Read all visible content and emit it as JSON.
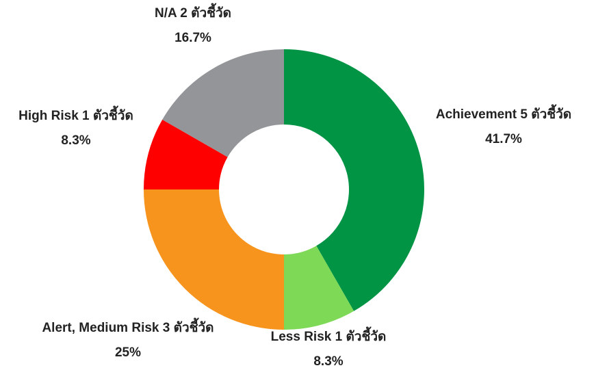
{
  "chart_data": {
    "type": "donut",
    "categories": [
      "Achievement 5 ตัวชี้วัด",
      "Less Risk 1 ตัวชี้วัด",
      "Alert, Medium Risk 3 ตัวชี้วัด",
      "High Risk 1 ตัวชี้วัด",
      "N/A 2 ตัวชี้วัด"
    ],
    "values": [
      41.7,
      8.3,
      25,
      8.3,
      16.7
    ],
    "value_labels": [
      "41.7%",
      "8.3%",
      "25%",
      "8.3%",
      "16.7%"
    ],
    "colors": [
      "#009444",
      "#7ed957",
      "#f7941d",
      "#ff0000",
      "#939598"
    ]
  }
}
